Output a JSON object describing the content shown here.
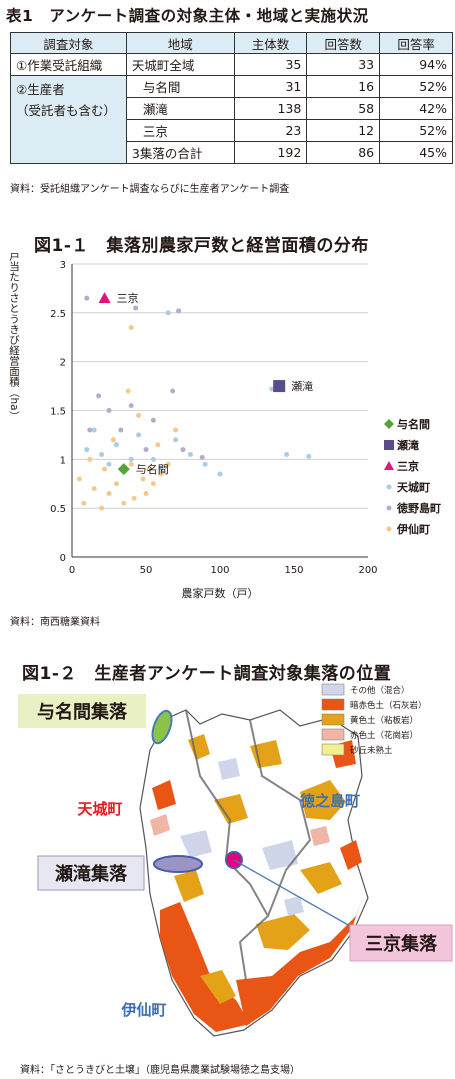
{
  "table": {
    "title": "表1　アンケート調査の対象主体・地域と実施状況",
    "headers": [
      "調査対象",
      "地域",
      "主体数",
      "回答数",
      "回答率"
    ],
    "rows": [
      {
        "group": "①作業受託組織",
        "area": "天城町全域",
        "subjects": "35",
        "answers": "33",
        "rate": "94%"
      },
      {
        "group": "②生産者\n（受託者も含む）",
        "area": "与名間",
        "subjects": "31",
        "answers": "16",
        "rate": "52%"
      },
      {
        "group": "",
        "area": "瀬滝",
        "subjects": "138",
        "answers": "58",
        "rate": "42%"
      },
      {
        "group": "",
        "area": "三京",
        "subjects": "23",
        "answers": "12",
        "rate": "52%"
      },
      {
        "group": "",
        "area": "3集落の合計",
        "subjects": "192",
        "answers": "86",
        "rate": "45%"
      }
    ],
    "source": "資料：受託組織アンケート調査ならびに生産者アンケート調査"
  },
  "figure1": {
    "title": "図1-１　集落別農家戸数と経営面積の分布",
    "source": "資料：南西糖業資料"
  },
  "chart_data": {
    "type": "scatter",
    "title": "図1-１　集落別農家戸数と経営面積の分布",
    "xlabel": "農家戸数（戸）",
    "ylabel": "一戸当たりさとうきび経営面積（ha）",
    "xlim": [
      0,
      200
    ],
    "ylim": [
      0,
      3
    ],
    "xticks": [
      "0",
      "50",
      "100",
      "150",
      "200"
    ],
    "yticks": [
      "0",
      "0.5",
      "1",
      "1.5",
      "2",
      "2.5",
      "3"
    ],
    "grid": "horizontal",
    "legend_position": "right",
    "series": [
      {
        "name": "与名間",
        "marker": "diamond",
        "color": "#56a33a",
        "points": [
          [
            35,
            0.9
          ]
        ]
      },
      {
        "name": "瀬滝",
        "marker": "square",
        "color": "#5b4a8c",
        "points": [
          [
            140,
            1.75
          ]
        ]
      },
      {
        "name": "三京",
        "marker": "triangle",
        "color": "#e0147a",
        "points": [
          [
            22,
            2.65
          ]
        ]
      },
      {
        "name": "天城町",
        "marker": "circle",
        "color": "#a9cde6",
        "points": [
          [
            10,
            1.1
          ],
          [
            15,
            1.3
          ],
          [
            20,
            1.05
          ],
          [
            25,
            0.95
          ],
          [
            30,
            1.15
          ],
          [
            40,
            1.0
          ],
          [
            45,
            1.25
          ],
          [
            55,
            1.0
          ],
          [
            60,
            0.9
          ],
          [
            65,
            2.5
          ],
          [
            70,
            1.2
          ],
          [
            80,
            1.05
          ],
          [
            90,
            0.95
          ],
          [
            100,
            0.85
          ],
          [
            135,
            1.72
          ],
          [
            145,
            1.05
          ],
          [
            160,
            1.03
          ]
        ]
      },
      {
        "name": "徳野島町",
        "marker": "circle",
        "color": "#b4adc8",
        "points": [
          [
            10,
            2.65
          ],
          [
            12,
            1.3
          ],
          [
            18,
            1.65
          ],
          [
            25,
            1.5
          ],
          [
            33,
            1.3
          ],
          [
            40,
            1.55
          ],
          [
            43,
            2.55
          ],
          [
            50,
            1.1
          ],
          [
            55,
            1.4
          ],
          [
            68,
            1.7
          ],
          [
            72,
            2.52
          ],
          [
            75,
            1.1
          ],
          [
            88,
            1.02
          ]
        ]
      },
      {
        "name": "伊仙町",
        "marker": "circle",
        "color": "#f5c98a",
        "points": [
          [
            5,
            0.8
          ],
          [
            8,
            0.55
          ],
          [
            12,
            1.0
          ],
          [
            15,
            0.7
          ],
          [
            20,
            0.5
          ],
          [
            22,
            0.9
          ],
          [
            25,
            0.65
          ],
          [
            28,
            1.2
          ],
          [
            30,
            0.75
          ],
          [
            35,
            0.55
          ],
          [
            38,
            1.7
          ],
          [
            40,
            0.95
          ],
          [
            40,
            2.35
          ],
          [
            42,
            0.6
          ],
          [
            45,
            1.45
          ],
          [
            48,
            0.8
          ],
          [
            50,
            0.65
          ],
          [
            52,
            0.9
          ],
          [
            55,
            0.75
          ],
          [
            58,
            1.15
          ],
          [
            60,
            0.85
          ],
          [
            65,
            0.95
          ],
          [
            70,
            1.3
          ]
        ]
      }
    ],
    "annotations": [
      {
        "text": "三京",
        "x": 22,
        "y": 2.65
      },
      {
        "text": "瀬滝",
        "x": 140,
        "y": 1.75
      },
      {
        "text": "与名間",
        "x": 35,
        "y": 0.9
      }
    ]
  },
  "figure2": {
    "title": "図1-２　生産者アンケート調査対象集落の位置",
    "labels": {
      "yonama": "与名間集落",
      "setaki": "瀬滝集落",
      "sankyo": "三京集落",
      "amagi": "天城町",
      "tokunoshima": "徳之島町",
      "isen": "伊仙町"
    },
    "soil_legend": [
      {
        "label": "その他（混合）",
        "color": "#cfd6ea"
      },
      {
        "label": "暗赤色土（石灰岩）",
        "color": "#e95514"
      },
      {
        "label": "黄色土（粘板岩）",
        "color": "#e3a218"
      },
      {
        "label": "赤色土（花崗岩）",
        "color": "#f1b5a6"
      },
      {
        "label": "砂丘未熟土",
        "color": "#f3ee8f"
      }
    ],
    "source": "資料：「さとうきびと土壌」（鹿児島県農業試験場徳之島支場）"
  }
}
